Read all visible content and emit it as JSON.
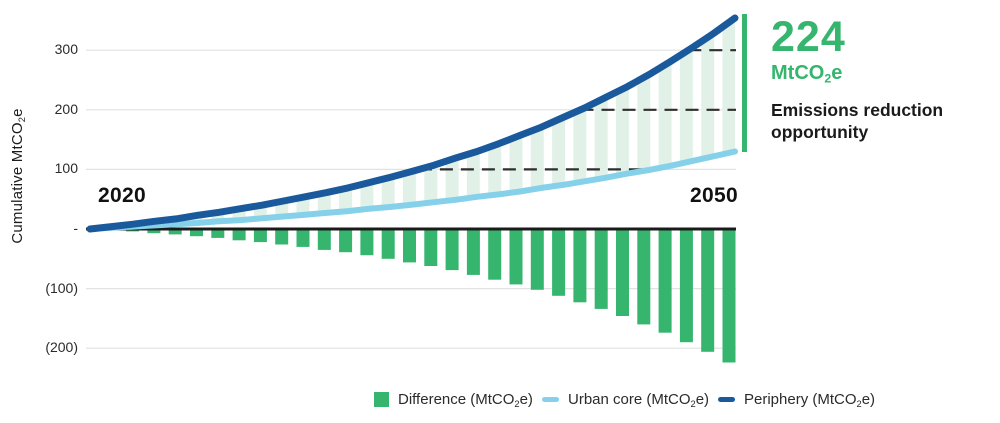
{
  "accent_green": "#35b56e",
  "y_axis": {
    "label_pre": "Cumulative MtCO",
    "label_sub": "2",
    "label_post": "e"
  },
  "x_axis": {
    "start_label": "2020",
    "end_label": "2050"
  },
  "callout": {
    "value": "224",
    "unit_pre": "MtCO",
    "unit_sub": "2",
    "unit_post": "e",
    "description": "Emissions reduction opportunity"
  },
  "legend": {
    "items": [
      {
        "label_pre": "Difference (MtCO",
        "label_sub": "2",
        "label_post": "e)",
        "swatch": "square",
        "color": "#35b56e"
      },
      {
        "label_pre": "Urban core (MtCO",
        "label_sub": "2",
        "label_post": "e)",
        "swatch": "line",
        "color": "#85d1ea"
      },
      {
        "label_pre": "Periphery (MtCO",
        "label_sub": "2",
        "label_post": "e)",
        "swatch": "line",
        "color": "#1a5a9c"
      }
    ]
  },
  "chart_data": {
    "type": "combo",
    "x": [
      2020,
      2021,
      2022,
      2023,
      2024,
      2025,
      2026,
      2027,
      2028,
      2029,
      2030,
      2031,
      2032,
      2033,
      2034,
      2035,
      2036,
      2037,
      2038,
      2039,
      2040,
      2041,
      2042,
      2043,
      2044,
      2045,
      2046,
      2047,
      2048,
      2049,
      2050
    ],
    "series": [
      {
        "name": "Difference (MtCO2e)",
        "role": "difference",
        "type": "bar",
        "color": "#35b56e",
        "values": [
          0,
          -2,
          -4,
          -7,
          -9,
          -12,
          -15,
          -19,
          -22,
          -26,
          -30,
          -35,
          -39,
          -44,
          -50,
          -56,
          -62,
          -69,
          -77,
          -85,
          -93,
          -102,
          -112,
          -123,
          -134,
          -146,
          -160,
          -174,
          -190,
          -206,
          -224
        ]
      },
      {
        "name": "Urban core (MtCO2e)",
        "role": "urban",
        "type": "line",
        "color": "#85d1ea",
        "values": [
          0,
          2,
          4,
          6,
          8,
          10,
          13,
          15,
          18,
          21,
          24,
          27,
          30,
          34,
          37,
          41,
          45,
          49,
          54,
          58,
          63,
          69,
          74,
          80,
          86,
          93,
          99,
          106,
          114,
          122,
          130
        ]
      },
      {
        "name": "Periphery (MtCO2e)",
        "role": "periphery",
        "type": "line",
        "color": "#1a5a9c",
        "values": [
          0,
          4,
          8,
          13,
          17,
          23,
          28,
          34,
          40,
          47,
          54,
          61,
          69,
          78,
          87,
          97,
          107,
          119,
          130,
          143,
          157,
          171,
          187,
          203,
          221,
          239,
          259,
          281,
          304,
          328,
          354
        ]
      }
    ],
    "ylabel": "Cumulative MtCO2e",
    "ylim": [
      -240,
      370
    ],
    "yticks": [
      {
        "value": 300,
        "label": "300"
      },
      {
        "value": 200,
        "label": "200"
      },
      {
        "value": 100,
        "label": "100"
      },
      {
        "value": 0,
        "label": "-"
      },
      {
        "value": -100,
        "label": "(100)"
      },
      {
        "value": -200,
        "label": "(200)"
      }
    ],
    "dashed_levels": [
      100,
      200,
      300
    ],
    "band": {
      "between": [
        "Urban core",
        "Periphery"
      ],
      "pattern": "vertical-stripes",
      "color": "#e2f1e8"
    },
    "grid": "horizontal",
    "legend_position": "bottom"
  }
}
